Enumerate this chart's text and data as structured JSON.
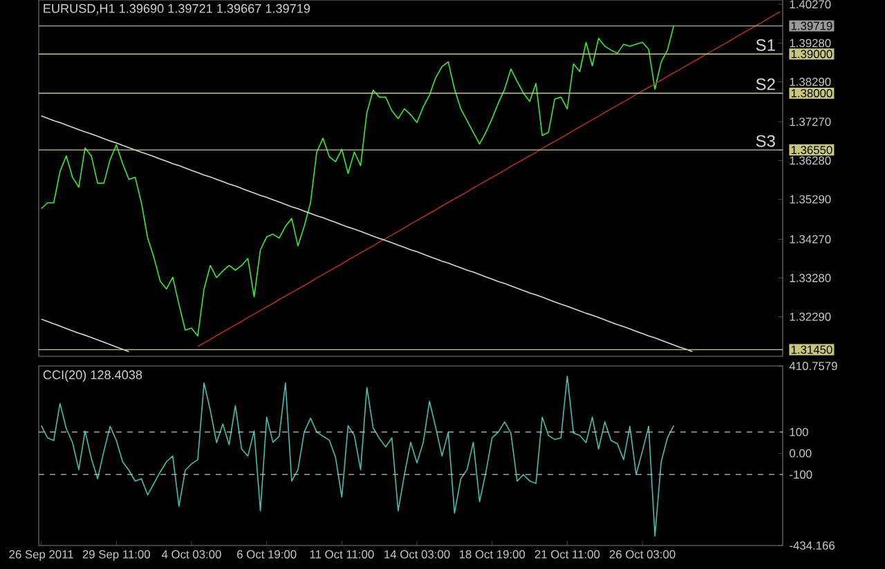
{
  "chart_data": [
    {
      "type": "line",
      "title": "EURUSD,H1 1.39690 1.39721 1.39667 1.39719",
      "tick_labels": "y",
      "categories": [
        null,
        null,
        null,
        null,
        null,
        null,
        null,
        null,
        null,
        null,
        null,
        null,
        null,
        null,
        null,
        null,
        null,
        null,
        null,
        null,
        null,
        null,
        null,
        null,
        null,
        null,
        null,
        null,
        null,
        null,
        null,
        null,
        null,
        null,
        null,
        null,
        null,
        null,
        null,
        null,
        null,
        null,
        null,
        null,
        null,
        null,
        null,
        null,
        null,
        null,
        null,
        null,
        null,
        null,
        null,
        null,
        null,
        null,
        null,
        null,
        null,
        null,
        null,
        null,
        null,
        null,
        null,
        null,
        null,
        null,
        null,
        null,
        null,
        null,
        null,
        null,
        null,
        null,
        null,
        null,
        null,
        null,
        null,
        null,
        null,
        null,
        null,
        null,
        null,
        null,
        null,
        null,
        null,
        null,
        null,
        null,
        null,
        null,
        null,
        null,
        null,
        null,
        null,
        null,
        null,
        null,
        null,
        null,
        null,
        null,
        null,
        null,
        null,
        null,
        null,
        null,
        null,
        null,
        null
      ],
      "ylim": [
        1.3128,
        1.4038
      ],
      "yticks": [
        {
          "value": 1.4027,
          "label": "1.40270"
        },
        {
          "value": 1.39719,
          "label": "1.39719"
        },
        {
          "value": 1.3928,
          "label": "1.39280"
        },
        {
          "value": 1.39,
          "label": "1.39000"
        },
        {
          "value": 1.3829,
          "label": "1.38290"
        },
        {
          "value": 1.38,
          "label": "1.38000"
        },
        {
          "value": 1.3727,
          "label": "1.37270"
        },
        {
          "value": 1.3655,
          "label": "1.36550"
        },
        {
          "value": 1.3628,
          "label": "1.36280"
        },
        {
          "value": 1.3529,
          "label": "1.35290"
        },
        {
          "value": 1.3427,
          "label": "1.34270"
        },
        {
          "value": 1.3328,
          "label": "1.33280"
        },
        {
          "value": 1.3229,
          "label": "1.32290"
        },
        {
          "value": 1.3145,
          "label": "1.31450"
        }
      ],
      "series": [
        {
          "color": "#33ee33",
          "values": [
            1.3505,
            1.352,
            1.352,
            1.36,
            1.364,
            1.3585,
            1.356,
            1.366,
            1.364,
            1.357,
            1.357,
            1.363,
            1.3668,
            1.362,
            1.358,
            1.3585,
            1.352,
            1.343,
            1.338,
            1.332,
            1.33,
            1.333,
            1.326,
            1.3195,
            1.32,
            1.318,
            1.33,
            1.336,
            1.3329,
            1.3346,
            1.336,
            1.3348,
            1.336,
            1.3378,
            1.328,
            1.34,
            1.3433,
            1.344,
            1.343,
            1.346,
            1.348,
            1.341,
            1.346,
            1.352,
            1.365,
            1.3685,
            1.3638,
            1.3625,
            1.3657,
            1.3595,
            1.365,
            1.3615,
            1.375,
            1.3808,
            1.379,
            1.379,
            1.3755,
            1.3735,
            1.376,
            1.3745,
            1.3725,
            1.3765,
            1.3795,
            1.384,
            1.3868,
            1.388,
            1.381,
            1.376,
            1.373,
            1.37,
            1.367,
            1.37,
            1.3735,
            1.3775,
            1.381,
            1.3862,
            1.383,
            1.38,
            1.3779,
            1.3825,
            1.3692,
            1.37,
            1.3785,
            1.379,
            1.376,
            1.3875,
            1.3855,
            1.393,
            1.387,
            1.394,
            1.392,
            1.391,
            1.3902,
            1.3925,
            1.392,
            1.3925,
            1.393,
            1.3912,
            1.381,
            1.388,
            1.391,
            1.3972,
            null,
            null,
            null,
            null,
            null,
            null,
            null,
            null,
            null,
            null,
            null,
            null,
            null,
            null,
            null,
            null,
            null
          ]
        },
        {
          "color": "#b03020",
          "values": [
            null,
            null,
            null,
            null,
            null,
            null,
            null,
            null,
            null,
            null,
            null,
            null,
            null,
            null,
            null,
            null,
            null,
            null,
            null,
            null,
            null,
            null,
            null,
            null,
            null,
            1.3153,
            1.3162,
            1.3171,
            1.3181,
            1.319,
            1.3199,
            1.3208,
            1.3217,
            1.3227,
            1.3236,
            1.3245,
            1.3254,
            1.3263,
            1.3273,
            1.3282,
            1.3291,
            1.33,
            1.3309,
            1.3318,
            1.3328,
            1.3337,
            1.3346,
            1.3355,
            1.3364,
            1.3374,
            1.3383,
            1.3392,
            1.3401,
            1.341,
            1.342,
            1.3429,
            1.3438,
            1.3447,
            1.3456,
            1.3466,
            1.3475,
            1.3484,
            1.3493,
            1.3502,
            1.3512,
            1.3521,
            1.353,
            1.3539,
            1.3548,
            1.3558,
            1.3567,
            1.3576,
            1.3585,
            1.3594,
            1.3603,
            1.3613,
            1.3622,
            1.3631,
            1.364,
            1.3649,
            1.3659,
            1.3668,
            1.3677,
            1.3686,
            1.3695,
            1.3705,
            1.3714,
            1.3723,
            1.3732,
            1.3741,
            1.3751,
            1.376,
            1.3769,
            1.3778,
            1.3787,
            1.3797,
            1.3806,
            1.3815,
            1.3824,
            1.3833,
            1.3843,
            1.3852,
            1.3861,
            1.387,
            1.3879,
            1.3888,
            1.3898,
            1.3907,
            1.3916,
            1.3925,
            1.3934,
            1.3944,
            1.3953,
            1.3962,
            1.3971,
            1.398,
            1.399,
            1.3999,
            1.4008
          ]
        },
        {
          "color": "#d8d8d8",
          "values": [
            1.3742,
            1.3736,
            1.373,
            1.3725,
            1.3719,
            1.3713,
            1.3707,
            1.3701,
            1.3696,
            1.369,
            1.3684,
            1.3678,
            1.3673,
            1.3667,
            1.3661,
            1.3655,
            1.3649,
            1.3644,
            1.3638,
            1.3632,
            1.3626,
            1.362,
            1.3615,
            1.3609,
            1.3603,
            1.3597,
            1.3591,
            1.3586,
            1.358,
            1.3574,
            1.3568,
            1.3563,
            1.3557,
            1.3551,
            1.3545,
            1.3539,
            1.3534,
            1.3528,
            1.3522,
            1.3516,
            1.351,
            1.3505,
            1.3499,
            1.3493,
            1.3487,
            1.3482,
            1.3476,
            1.347,
            1.3464,
            1.3458,
            1.3453,
            1.3447,
            1.3441,
            1.3435,
            1.3429,
            1.3424,
            1.3418,
            1.3412,
            1.3406,
            1.34,
            1.3395,
            1.3389,
            1.3383,
            1.3377,
            1.3371,
            1.3366,
            1.336,
            1.3354,
            1.3348,
            1.3343,
            1.3337,
            1.3331,
            1.3325,
            1.3319,
            1.3314,
            1.3308,
            1.3302,
            1.3296,
            1.329,
            1.3285,
            1.3279,
            1.3273,
            1.3267,
            1.3261,
            1.3256,
            1.325,
            1.3244,
            1.3238,
            1.3233,
            1.3227,
            1.3221,
            1.3215,
            1.3209,
            1.3204,
            1.3198,
            1.3192,
            1.3186,
            1.318,
            1.3175,
            1.3169,
            1.3163,
            1.3157,
            1.3151,
            1.3146,
            1.314,
            null,
            null,
            null,
            null,
            null,
            null,
            null,
            null,
            null,
            null,
            null,
            null,
            null,
            null
          ]
        },
        {
          "color": "#d8d8d8",
          "values": [
            1.3223,
            1.3217,
            1.3211,
            1.3205,
            1.3199,
            1.3193,
            1.3187,
            1.3182,
            1.3176,
            1.317,
            1.3164,
            1.3158,
            1.3152,
            1.3146,
            1.314,
            null,
            null,
            null,
            null,
            null,
            null,
            null,
            null,
            null,
            null,
            null,
            null,
            null,
            null,
            null,
            null,
            null,
            null,
            null,
            null,
            null,
            null,
            null,
            null,
            null,
            null,
            null,
            null,
            null,
            null,
            null,
            null,
            null,
            null,
            null,
            null,
            null,
            null,
            null,
            null,
            null,
            null,
            null,
            null,
            null,
            null,
            null,
            null,
            null,
            null,
            null,
            null,
            null,
            null,
            null,
            null,
            null,
            null,
            null,
            null,
            null,
            null,
            null,
            null,
            null,
            null,
            null,
            null,
            null,
            null,
            null,
            null,
            null,
            null,
            null,
            null,
            null,
            null,
            null,
            null,
            null,
            null,
            null,
            null,
            null,
            null,
            null,
            null,
            null,
            null,
            null,
            null,
            null,
            null,
            null,
            null,
            null,
            null,
            null,
            null,
            null,
            null,
            null,
            null
          ]
        }
      ],
      "ref_lines": [
        {
          "axis": "y",
          "value": 1.39719,
          "color": "#9a9a9a"
        },
        {
          "axis": "y",
          "value": 1.39,
          "label": "S1",
          "color": "#c8c878"
        },
        {
          "axis": "y",
          "value": 1.38,
          "label": "S2",
          "color": "#c8c878"
        },
        {
          "axis": "y",
          "value": 1.3655,
          "label": "S3",
          "color": "#c8c878"
        },
        {
          "axis": "y",
          "value": 1.3145,
          "color": "#c8c878"
        }
      ]
    },
    {
      "type": "line",
      "title": "CCI(20) 128.4038",
      "categories": [
        "26 Sep 2011",
        null,
        null,
        null,
        null,
        null,
        null,
        null,
        null,
        null,
        null,
        null,
        "29 Sep 11:00",
        null,
        null,
        null,
        null,
        null,
        null,
        null,
        null,
        null,
        null,
        null,
        "4 Oct 03:00",
        null,
        null,
        null,
        null,
        null,
        null,
        null,
        null,
        null,
        null,
        null,
        "6 Oct 19:00",
        null,
        null,
        null,
        null,
        null,
        null,
        null,
        null,
        null,
        null,
        null,
        "11 Oct 11:00",
        null,
        null,
        null,
        null,
        null,
        null,
        null,
        null,
        null,
        null,
        null,
        "14 Oct 03:00",
        null,
        null,
        null,
        null,
        null,
        null,
        null,
        null,
        null,
        null,
        null,
        "18 Oct 19:00",
        null,
        null,
        null,
        null,
        null,
        null,
        null,
        null,
        null,
        null,
        null,
        "21 Oct 11:00",
        null,
        null,
        null,
        null,
        null,
        null,
        null,
        null,
        null,
        null,
        null,
        "26 Oct 03:00",
        null,
        null,
        null,
        null,
        null,
        null,
        null,
        null,
        null,
        null,
        null,
        null,
        null,
        null,
        null,
        null,
        null,
        null,
        null,
        null,
        null,
        null
      ],
      "ylim": [
        -434.166,
        410.7579
      ],
      "yticks": [
        410.7579,
        100,
        {
          "value": 0,
          "label": "0.00"
        },
        -100,
        -434.166
      ],
      "series": [
        {
          "color": "#40c0b0",
          "values": [
            130,
            73,
            60,
            234,
            116,
            50,
            -77,
            105,
            -24,
            -120,
            9,
            127,
            60,
            -40,
            -80,
            -131,
            -120,
            -196,
            -142,
            -88,
            -40,
            -13,
            -249,
            -80,
            -50,
            -30,
            331,
            202,
            50,
            138,
            40,
            224,
            20,
            -13,
            105,
            -271,
            170,
            52,
            80,
            331,
            -131,
            -77,
            100,
            165,
            100,
            80,
            62,
            -20,
            -206,
            130,
            84,
            -77,
            310,
            120,
            70,
            30,
            73,
            -271,
            -100,
            52,
            -45,
            50,
            245,
            120,
            -13,
            100,
            -282,
            -120,
            -77,
            52,
            -228,
            -90,
            73,
            100,
            148,
            95,
            -131,
            -100,
            -130,
            -142,
            170,
            84,
            65,
            73,
            363,
            95,
            84,
            50,
            170,
            20,
            148,
            60,
            45,
            -30,
            127,
            -100,
            10,
            127,
            -389,
            -40,
            73,
            130,
            null,
            null,
            null,
            null,
            null,
            null,
            null,
            null,
            null,
            null,
            null,
            null,
            null,
            null,
            null,
            null,
            null
          ]
        }
      ],
      "ref_lines": [
        {
          "axis": "y",
          "value": 100,
          "color": "#c0c0c0",
          "line_style": "dashed"
        },
        {
          "axis": "y",
          "value": -100,
          "color": "#c0c0c0",
          "line_style": "dashed"
        }
      ]
    }
  ]
}
